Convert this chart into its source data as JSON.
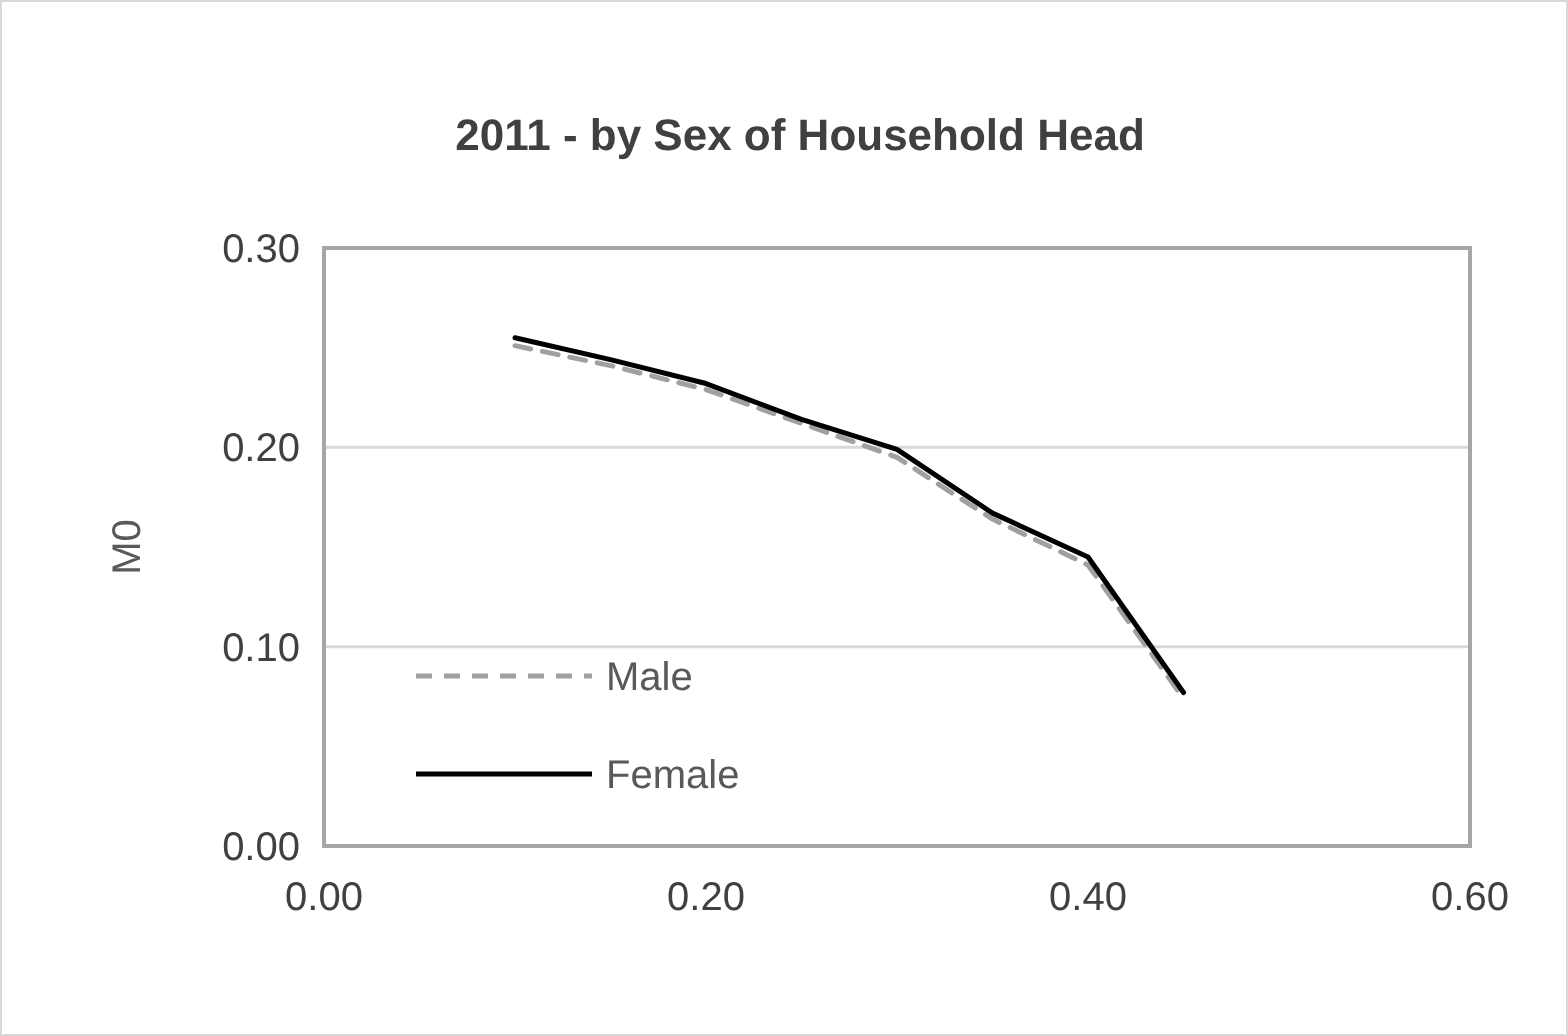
{
  "chart_data": {
    "type": "line",
    "title": "2011 - by Sex of Household Head",
    "ylabel": "M0",
    "x": [
      0.1,
      0.15,
      0.2,
      0.25,
      0.3,
      0.35,
      0.4,
      0.45
    ],
    "series": [
      {
        "name": "Male",
        "color": "#a0a0a0",
        "line_style": "dashed",
        "values": [
          0.251,
          0.241,
          0.229,
          0.212,
          0.195,
          0.164,
          0.141,
          0.074
        ]
      },
      {
        "name": "Female",
        "color": "#000000",
        "line_style": "solid",
        "values": [
          0.255,
          0.244,
          0.232,
          0.214,
          0.199,
          0.167,
          0.145,
          0.077
        ]
      }
    ],
    "xlim": [
      0,
      0.6
    ],
    "xticks": [
      {
        "value": 0,
        "label": "0.00"
      },
      {
        "value": 0.2,
        "label": "0.20"
      },
      {
        "value": 0.4,
        "label": "0.40"
      },
      {
        "value": 0.6,
        "label": "0.60"
      }
    ],
    "ylim": [
      0,
      0.3
    ],
    "yticks": [
      {
        "value": 0,
        "label": "0.00"
      },
      {
        "value": 0.1,
        "label": "0.10"
      },
      {
        "value": 0.2,
        "label": "0.20"
      },
      {
        "value": 0.3,
        "label": "0.30"
      }
    ],
    "grid": "y",
    "legend": "bottom left",
    "marker": "none"
  }
}
